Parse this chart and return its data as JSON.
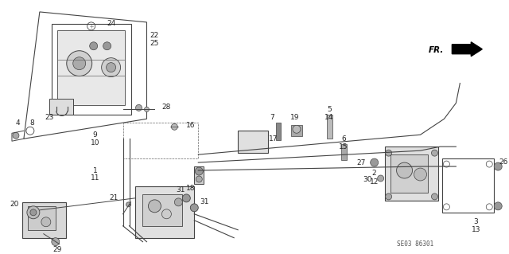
{
  "bg_color": "#ffffff",
  "diagram_code": "SE03 86301",
  "fr_label": "FR.",
  "fig_width": 6.4,
  "fig_height": 3.19,
  "dpi": 100,
  "line_color": "#444444",
  "label_color": "#222222",
  "label_fs": 6.5
}
